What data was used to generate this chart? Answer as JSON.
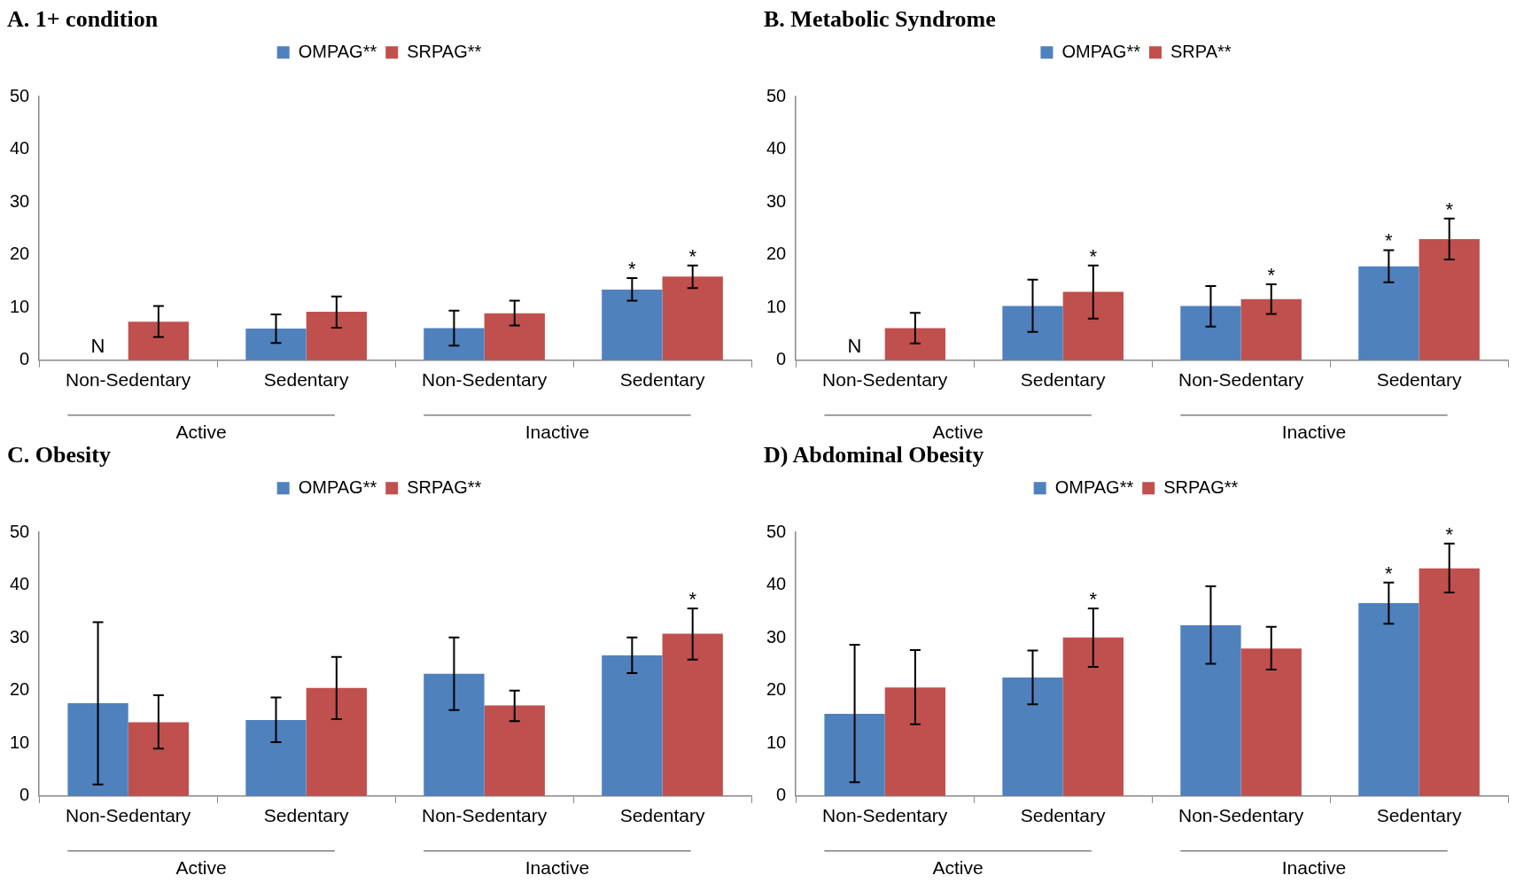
{
  "chart_data": [
    {
      "type": "bar",
      "title": "A. 1+ condition",
      "categories": [
        "Non-Sedentary",
        "Sedentary",
        "Non-Sedentary",
        "Sedentary"
      ],
      "annotations": [
        "Active",
        "Inactive",
        {
          "text": "N",
          "x": "Non-Sedentary",
          "y": 0
        }
      ],
      "ylim": [
        0,
        50
      ],
      "yticks": [
        0,
        10,
        20,
        30,
        40,
        50
      ],
      "legend": "top",
      "series": [
        {
          "name": "OMPAG**",
          "color": "#4f81bd",
          "values": [
            null,
            6,
            6.1,
            13.4
          ],
          "errors": [
            null,
            [
              3.3,
              8.7
            ],
            [
              2.8,
              9.4
            ],
            [
              11.3,
              15.6
            ]
          ],
          "value_labels": [
            null,
            null,
            null,
            "*"
          ]
        },
        {
          "name": "SRPAG**",
          "color": "#c0504d",
          "values": [
            7.3,
            9.2,
            8.9,
            15.9
          ],
          "errors": [
            [
              4.4,
              10.3
            ],
            [
              6.2,
              12.1
            ],
            [
              6.6,
              11.3
            ],
            [
              13.7,
              18
            ]
          ],
          "value_labels": [
            null,
            null,
            null,
            "*"
          ]
        }
      ]
    },
    {
      "type": "bar",
      "title": "B. Metabolic Syndrome",
      "categories": [
        "Non-Sedentary",
        "Sedentary",
        "Non-Sedentary",
        "Sedentary"
      ],
      "annotations": [
        "Active",
        "Inactive",
        {
          "text": "N",
          "x": "Non-Sedentary",
          "y": 0
        }
      ],
      "ylim": [
        0,
        50
      ],
      "yticks": [
        0,
        10,
        20,
        30,
        40,
        50
      ],
      "legend": "top",
      "series": [
        {
          "name": "OMPAG**",
          "color": "#4f81bd",
          "values": [
            null,
            10.3,
            10.3,
            17.8
          ],
          "errors": [
            null,
            [
              5.4,
              15.3
            ],
            [
              6.4,
              14.1
            ],
            [
              14.8,
              20.9
            ]
          ],
          "value_labels": [
            null,
            null,
            null,
            "*"
          ]
        },
        {
          "name": "SRPA**",
          "color": "#c0504d",
          "values": [
            6.1,
            13,
            11.6,
            23
          ],
          "errors": [
            [
              3.2,
              9
            ],
            [
              7.9,
              18
            ],
            [
              8.8,
              14.4
            ],
            [
              19.1,
              26.9
            ]
          ],
          "value_labels": [
            null,
            "*",
            "*",
            "*"
          ]
        }
      ]
    },
    {
      "type": "bar",
      "title": "C. Obesity",
      "categories": [
        "Non-Sedentary",
        "Sedentary",
        "Non-Sedentary",
        "Sedentary"
      ],
      "annotations": [
        "Active",
        "Inactive"
      ],
      "ylim": [
        0,
        50
      ],
      "yticks": [
        0,
        10,
        20,
        30,
        40,
        50
      ],
      "legend": "top",
      "series": [
        {
          "name": "OMPAG**",
          "color": "#4f81bd",
          "values": [
            17.6,
            14.4,
            23.2,
            26.7
          ],
          "errors": [
            [
              2.2,
              33
            ],
            [
              10.2,
              18.7
            ],
            [
              16.3,
              30.1
            ],
            [
              23.3,
              30.1
            ]
          ]
        },
        {
          "name": "SRPAG**",
          "color": "#c0504d",
          "values": [
            14,
            20.5,
            17.2,
            30.8
          ],
          "errors": [
            [
              9,
              19.1
            ],
            [
              14.6,
              26.4
            ],
            [
              14.2,
              20
            ],
            [
              25.9,
              35.6
            ]
          ],
          "value_labels": [
            null,
            null,
            null,
            "*"
          ]
        }
      ]
    },
    {
      "type": "bar",
      "title": "D) Abdominal Obesity",
      "categories": [
        "Non-Sedentary",
        "Sedentary",
        "Non-Sedentary",
        "Sedentary"
      ],
      "annotations": [
        "Active",
        "Inactive"
      ],
      "ylim": [
        0,
        50
      ],
      "yticks": [
        0,
        10,
        20,
        30,
        40,
        50
      ],
      "legend": "top",
      "series": [
        {
          "name": "OMPAG**",
          "color": "#4f81bd",
          "values": [
            15.6,
            22.5,
            32.4,
            36.6
          ],
          "errors": [
            [
              2.6,
              28.7
            ],
            [
              17.4,
              27.6
            ],
            [
              25.1,
              39.8
            ],
            [
              32.7,
              40.5
            ]
          ],
          "value_labels": [
            null,
            null,
            null,
            "*"
          ]
        },
        {
          "name": "SRPAG**",
          "color": "#c0504d",
          "values": [
            20.6,
            30.1,
            28,
            43.2
          ],
          "errors": [
            [
              13.6,
              27.7
            ],
            [
              24.5,
              35.6
            ],
            [
              24,
              32.1
            ],
            [
              38.6,
              47.9
            ]
          ],
          "value_labels": [
            null,
            "*",
            null,
            "*"
          ]
        }
      ]
    }
  ]
}
